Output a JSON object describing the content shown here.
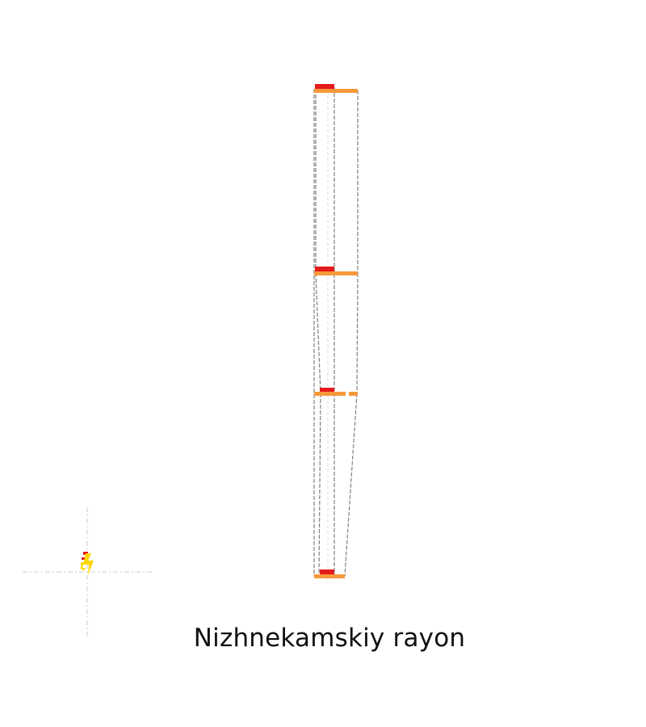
{
  "caption": "Nizhnekamskiy rayon",
  "colors": {
    "background": "#ffffff",
    "outline": "#808080",
    "crosshair": "#cccccc",
    "orange_bar": "#f59a3a",
    "red_marker": "#e41a1c",
    "yellow_marker": "#ffd700"
  },
  "icons": {
    "locator": "lightning-bolt-icon"
  }
}
